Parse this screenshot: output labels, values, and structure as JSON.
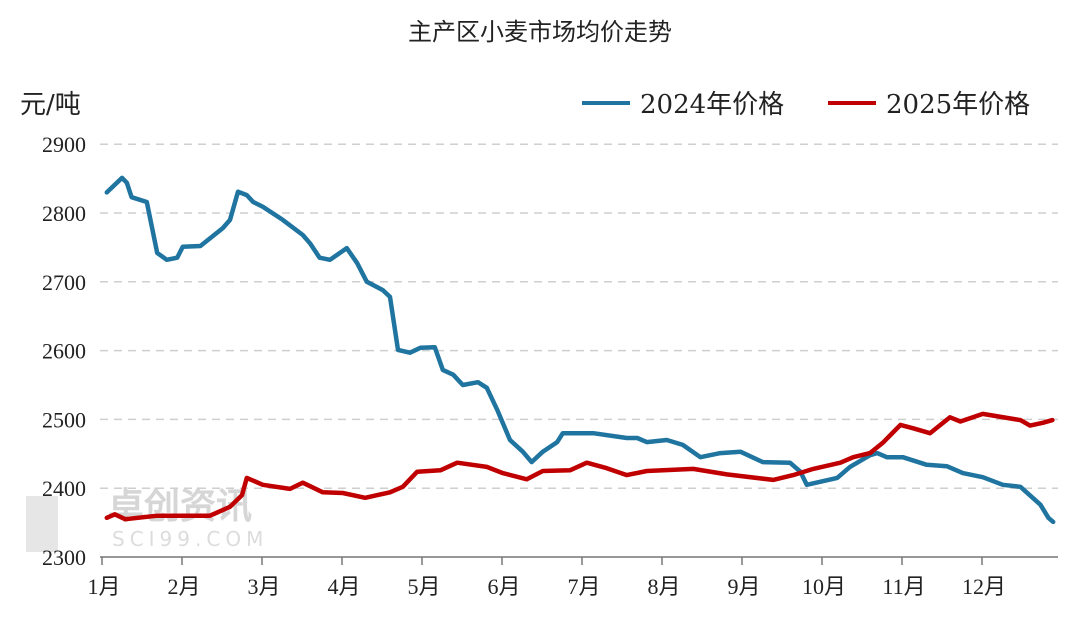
{
  "chart_data": {
    "type": "line",
    "title": "主产区小麦市场均价走势",
    "ylabel": "元/吨",
    "xlabel": "",
    "ylim": [
      2300,
      2900
    ],
    "yticks": [
      2300,
      2400,
      2500,
      2600,
      2700,
      2800,
      2900
    ],
    "xticks": [
      "1月",
      "2月",
      "3月",
      "4月",
      "5月",
      "6月",
      "7月",
      "8月",
      "9月",
      "10月",
      "11月",
      "12月"
    ],
    "grid": "horizontal dashed",
    "legend_position": "top-right",
    "x_unit": "month (1 = start of 1月)",
    "series": [
      {
        "name": "2024年价格",
        "color": "#1f74a0",
        "x": [
          1.06,
          1.25,
          1.31,
          1.37,
          1.56,
          1.69,
          1.81,
          1.94,
          2.01,
          2.23,
          2.51,
          2.6,
          2.7,
          2.81,
          2.89,
          3.01,
          3.26,
          3.51,
          3.6,
          3.72,
          3.85,
          4.06,
          4.19,
          4.31,
          4.51,
          4.6,
          4.7,
          4.85,
          4.98,
          5.16,
          5.26,
          5.39,
          5.51,
          5.7,
          5.81,
          5.94,
          6.1,
          6.26,
          6.37,
          6.51,
          6.69,
          6.76,
          7.14,
          7.56,
          7.69,
          7.81,
          8.06,
          8.26,
          8.48,
          8.73,
          8.98,
          9.26,
          9.6,
          9.73,
          9.81,
          10.19,
          10.35,
          10.6,
          10.69,
          10.81,
          11.01,
          11.31,
          11.56,
          11.76,
          12.01,
          12.26,
          12.48,
          12.73,
          12.83,
          12.89
        ],
        "y": [
          2830,
          2851,
          2844,
          2823,
          2816,
          2742,
          2732,
          2735,
          2751,
          2752,
          2778,
          2790,
          2831,
          2826,
          2816,
          2809,
          2790,
          2768,
          2756,
          2735,
          2732,
          2749,
          2727,
          2700,
          2688,
          2678,
          2601,
          2597,
          2604,
          2605,
          2572,
          2565,
          2550,
          2554,
          2546,
          2514,
          2470,
          2453,
          2438,
          2453,
          2467,
          2480,
          2480,
          2473,
          2473,
          2467,
          2470,
          2463,
          2445,
          2451,
          2453,
          2438,
          2437,
          2424,
          2405,
          2415,
          2431,
          2448,
          2451,
          2445,
          2445,
          2434,
          2432,
          2422,
          2416,
          2405,
          2402,
          2376,
          2357,
          2351
        ]
      },
      {
        "name": "2025年价格",
        "color": "#c00000",
        "x": [
          1.06,
          1.16,
          1.29,
          1.69,
          2.35,
          2.6,
          2.75,
          2.81,
          3.01,
          3.35,
          3.51,
          3.76,
          4.01,
          4.29,
          4.6,
          4.76,
          4.94,
          5.23,
          5.44,
          5.81,
          6.01,
          6.31,
          6.51,
          6.85,
          7.06,
          7.31,
          7.56,
          7.81,
          8.39,
          8.81,
          9.39,
          9.64,
          9.89,
          10.23,
          10.39,
          10.6,
          10.76,
          10.98,
          11.14,
          11.35,
          11.6,
          11.73,
          12.01,
          12.48,
          12.6,
          12.76,
          12.88
        ],
        "y": [
          2357,
          2362,
          2355,
          2360,
          2360,
          2373,
          2390,
          2415,
          2405,
          2399,
          2408,
          2394,
          2393,
          2386,
          2394,
          2402,
          2424,
          2426,
          2437,
          2431,
          2422,
          2413,
          2425,
          2426,
          2437,
          2429,
          2419,
          2425,
          2428,
          2420,
          2412,
          2419,
          2428,
          2437,
          2445,
          2451,
          2466,
          2492,
          2487,
          2480,
          2503,
          2497,
          2508,
          2499,
          2491,
          2495,
          2499
        ]
      }
    ]
  },
  "watermark": {
    "text": "卓创资讯",
    "sub": "SCI99.COM"
  }
}
